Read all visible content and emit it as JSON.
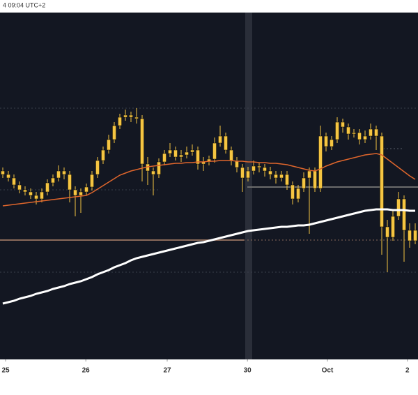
{
  "chart_data": {
    "type": "candlestick",
    "title": "4 09:04 UTC+2",
    "open": [
      270,
      265,
      260,
      250,
      243,
      240,
      235,
      230,
      240,
      253,
      260,
      270,
      265,
      243,
      235,
      240,
      247,
      265,
      285,
      300,
      315,
      335,
      347,
      350,
      347,
      345,
      280,
      270,
      265,
      283,
      295,
      300,
      290,
      293,
      297,
      300,
      280,
      283,
      287,
      310,
      320,
      300,
      285,
      275,
      260,
      270,
      277,
      275,
      270,
      265,
      260,
      265,
      250,
      230,
      245,
      260,
      270,
      245,
      320,
      305,
      315,
      340,
      333,
      323,
      325,
      315,
      320,
      330,
      320,
      190,
      175,
      205,
      230,
      185,
      170
    ],
    "high": [
      275,
      270,
      265,
      255,
      248,
      245,
      240,
      245,
      258,
      265,
      278,
      275,
      270,
      248,
      245,
      252,
      270,
      290,
      305,
      322,
      340,
      352,
      358,
      355,
      360,
      350,
      290,
      275,
      288,
      300,
      310,
      305,
      300,
      305,
      308,
      305,
      290,
      292,
      318,
      335,
      325,
      305,
      290,
      280,
      276,
      285,
      282,
      280,
      276,
      270,
      270,
      270,
      255,
      250,
      268,
      275,
      275,
      335,
      325,
      320,
      347,
      345,
      338,
      330,
      330,
      328,
      338,
      335,
      325,
      200,
      215,
      240,
      235,
      195,
      195
    ],
    "low": [
      260,
      255,
      245,
      238,
      235,
      230,
      222,
      225,
      235,
      248,
      255,
      258,
      225,
      205,
      210,
      235,
      242,
      260,
      280,
      295,
      310,
      330,
      342,
      340,
      338,
      255,
      250,
      235,
      260,
      278,
      290,
      285,
      283,
      288,
      292,
      272,
      270,
      278,
      282,
      305,
      295,
      278,
      268,
      240,
      255,
      265,
      268,
      262,
      258,
      252,
      255,
      243,
      222,
      225,
      240,
      180,
      240,
      240,
      298,
      300,
      310,
      325,
      315,
      318,
      308,
      310,
      315,
      300,
      150,
      125,
      170,
      200,
      140,
      160,
      165
    ],
    "close": [
      265,
      260,
      250,
      243,
      240,
      235,
      230,
      240,
      253,
      260,
      270,
      265,
      243,
      235,
      240,
      247,
      265,
      285,
      300,
      315,
      335,
      347,
      350,
      347,
      345,
      280,
      270,
      265,
      283,
      295,
      300,
      290,
      293,
      297,
      300,
      280,
      283,
      287,
      310,
      320,
      300,
      285,
      275,
      260,
      270,
      277,
      275,
      270,
      265,
      260,
      265,
      250,
      230,
      245,
      260,
      270,
      245,
      320,
      305,
      315,
      340,
      333,
      323,
      325,
      315,
      320,
      330,
      320,
      190,
      175,
      205,
      230,
      185,
      170,
      185
    ],
    "color": "#f5c542",
    "series": [
      {
        "color": "#e0662c",
        "values": [
          220,
          221,
          222,
          223,
          224,
          225,
          226,
          227,
          228,
          229,
          230,
          231,
          232,
          233,
          234,
          235,
          239,
          244,
          249,
          254,
          259,
          264,
          267,
          270,
          272,
          274,
          276,
          277,
          278,
          279,
          280,
          281,
          281,
          282,
          282,
          283,
          283,
          284,
          284,
          285,
          285,
          285,
          284,
          284,
          283,
          283,
          282,
          282,
          281,
          281,
          280,
          279,
          277,
          275,
          273,
          271,
          270,
          273,
          277,
          280,
          283,
          285,
          287,
          289,
          291,
          293,
          294,
          295,
          293,
          287,
          281,
          275,
          269,
          263,
          258
        ]
      },
      {
        "color": "#ffffff",
        "values": [
          80,
          82,
          84,
          87,
          89,
          91,
          94,
          96,
          98,
          101,
          103,
          105,
          108,
          110,
          112,
          115,
          118,
          122,
          125,
          128,
          132,
          135,
          138,
          142,
          145,
          147,
          149,
          151,
          153,
          155,
          157,
          159,
          161,
          163,
          165,
          167,
          168,
          170,
          172,
          174,
          176,
          178,
          180,
          182,
          184,
          185,
          186,
          187,
          188,
          189,
          190,
          190,
          191,
          192,
          192,
          193,
          195,
          197,
          199,
          201,
          203,
          205,
          207,
          209,
          211,
          213,
          214,
          215,
          215,
          215,
          214,
          214,
          214,
          213,
          213
        ]
      }
    ],
    "xlim": [
      -0.5,
      74.5
    ],
    "xticks": [
      {
        "value": 0.5,
        "label": "25"
      },
      {
        "value": 14.9,
        "label": "26"
      },
      {
        "value": 29.5,
        "label": "27"
      },
      {
        "value": 43.9,
        "label": "30"
      },
      {
        "value": 58.25,
        "label": "Oct"
      },
      {
        "value": 72.6,
        "label": "2"
      }
    ],
    "ylim": [
      0,
      497
    ]
  }
}
